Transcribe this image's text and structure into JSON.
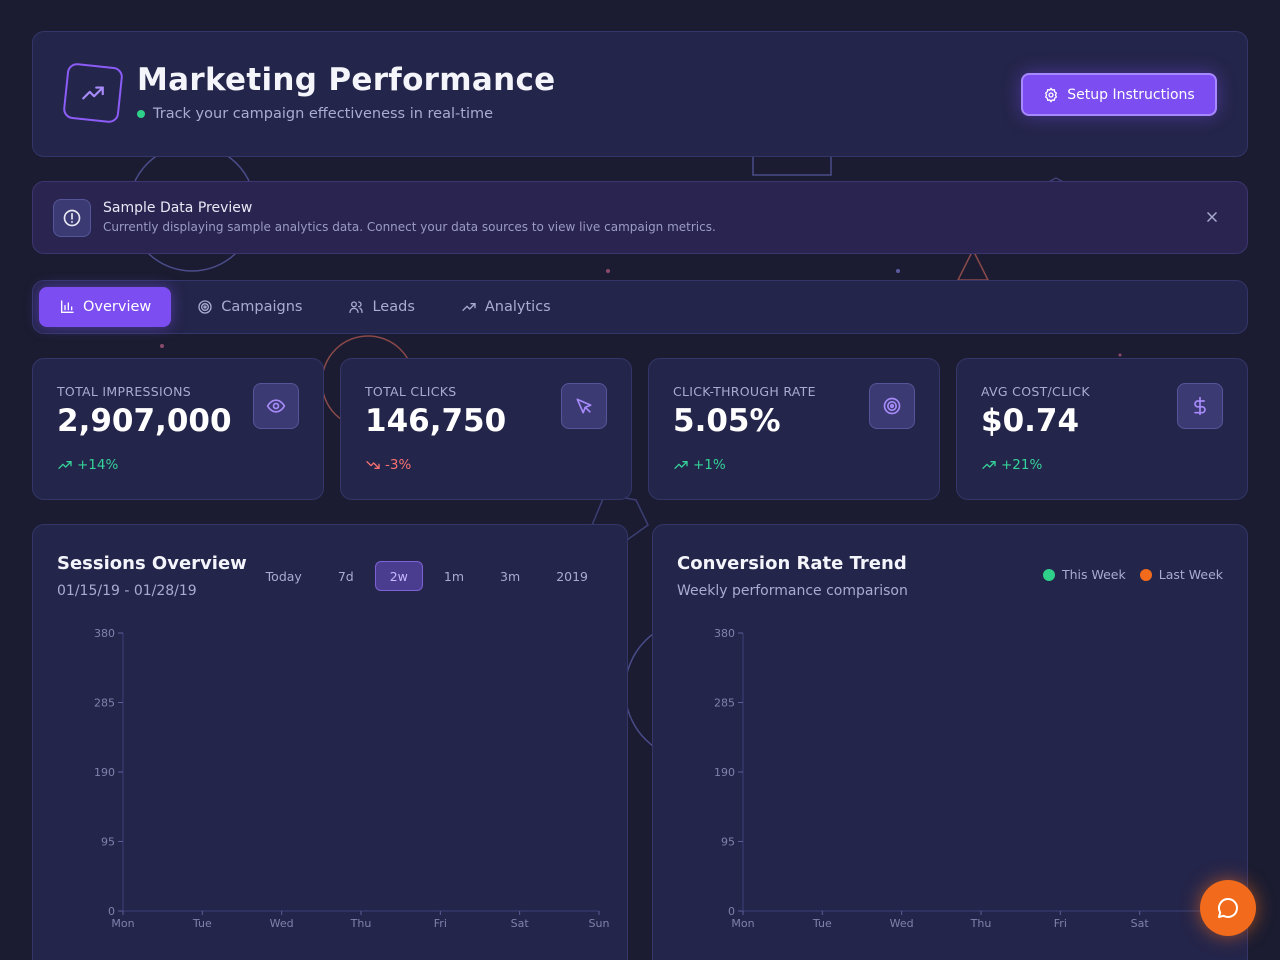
{
  "header": {
    "title": "Marketing Performance",
    "subtitle": "Track your campaign effectiveness in real-time",
    "setup_button": "Setup Instructions",
    "logo_icon": "trending-up-icon"
  },
  "alert": {
    "title": "Sample Data Preview",
    "text": "Currently displaying sample analytics data. Connect your data sources to view live campaign metrics."
  },
  "tabs": [
    {
      "label": "Overview",
      "icon": "bar-chart-icon",
      "active": true
    },
    {
      "label": "Campaigns",
      "icon": "target-icon",
      "active": false
    },
    {
      "label": "Leads",
      "icon": "users-icon",
      "active": false
    },
    {
      "label": "Analytics",
      "icon": "trending-up-icon",
      "active": false
    }
  ],
  "kpis": [
    {
      "label": "TOTAL IMPRESSIONS",
      "value": "2,907,000",
      "trend": "+14%",
      "direction": "up",
      "icon": "eye-icon"
    },
    {
      "label": "TOTAL CLICKS",
      "value": "146,750",
      "trend": "-3%",
      "direction": "down",
      "icon": "cursor-icon"
    },
    {
      "label": "CLICK-THROUGH RATE",
      "value": "5.05%",
      "trend": "+1%",
      "direction": "up",
      "icon": "target-icon"
    },
    {
      "label": "AVG COST/CLICK",
      "value": "$0.74",
      "trend": "+21%",
      "direction": "up",
      "icon": "dollar-icon"
    }
  ],
  "sessions": {
    "title": "Sessions Overview",
    "date_range": "01/15/19 - 01/28/19",
    "ranges": [
      "Today",
      "7d",
      "2w",
      "1m",
      "3m",
      "2019"
    ],
    "active_range": "2w"
  },
  "conversion": {
    "title": "Conversion Rate Trend",
    "subtitle": "Weekly performance comparison",
    "legend": [
      {
        "label": "This Week",
        "color": "#2fd08a"
      },
      {
        "label": "Last Week",
        "color": "#f26a1b"
      }
    ]
  },
  "chart_data": [
    {
      "type": "line",
      "categories": [
        "Mon",
        "Tue",
        "Wed",
        "Thu",
        "Fri",
        "Sat",
        "Sun"
      ],
      "series": [],
      "yticks": [
        "380",
        "285",
        "190",
        "95",
        "0"
      ],
      "ylim": [
        0,
        380
      ],
      "grid": false
    },
    {
      "type": "line",
      "categories": [
        "Mon",
        "Tue",
        "Wed",
        "Thu",
        "Fri",
        "Sat"
      ],
      "series": [],
      "yticks": [
        "380",
        "285",
        "190",
        "95",
        "0"
      ],
      "ylim": [
        0,
        380
      ],
      "grid": false
    }
  ],
  "colors": {
    "accent": "#7c4df0",
    "positive": "#34d399",
    "negative": "#f87171",
    "fab": "#f26a1b"
  },
  "fab_icon": "chat-icon"
}
